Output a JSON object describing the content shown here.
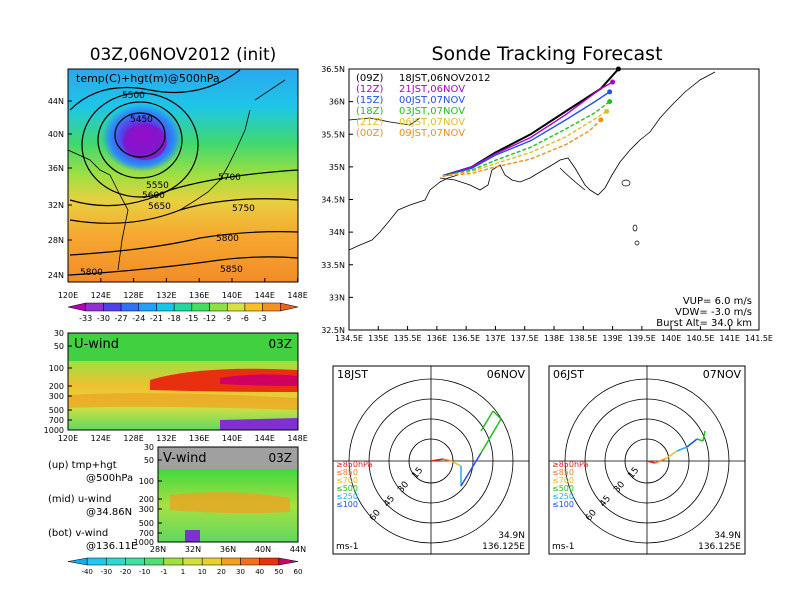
{
  "titles": {
    "left": "03Z,06NOV2012 (init)",
    "right": "Sonde Tracking Forecast"
  },
  "map500": {
    "label": "temp(C)+hgt(m)@500hPa",
    "lat_ticks": [
      "44N",
      "40N",
      "36N",
      "32N",
      "28N",
      "24N"
    ],
    "lon_ticks": [
      "120E",
      "124E",
      "128E",
      "132E",
      "136E",
      "140E",
      "144E",
      "148E"
    ],
    "contour_labels": [
      "5500",
      "5450",
      "5550",
      "5600",
      "5650",
      "5700",
      "5750",
      "5800",
      "5850",
      "5800"
    ],
    "colorbar_labels": [
      "-33",
      "-30",
      "-27",
      "-24",
      "-21",
      "-18",
      "-15",
      "-12",
      "-9",
      "-6",
      "-3"
    ],
    "colorbar_colors": [
      "#b000b0",
      "#9030d0",
      "#5040f0",
      "#3070ff",
      "#20a0ff",
      "#10c8e8",
      "#20d8a0",
      "#40e060",
      "#90e040",
      "#d8e040",
      "#f8c020",
      "#f89020",
      "#f06020"
    ]
  },
  "uwind": {
    "label": "U-wind",
    "time": "03Z",
    "p_ticks": [
      "30",
      "50",
      "100",
      "200",
      "300",
      "500",
      "700",
      "1000"
    ],
    "lon_ticks": [
      "120E",
      "124E",
      "128E",
      "132E",
      "136E",
      "140E",
      "144E",
      "148E"
    ]
  },
  "vwind": {
    "label": "V-wind",
    "time": "03Z",
    "p_ticks": [
      "30",
      "50",
      "100",
      "200",
      "300",
      "500",
      "700",
      "1000"
    ],
    "lat_ticks": [
      "28N",
      "32N",
      "36N",
      "40N",
      "44N"
    ]
  },
  "legend_text": {
    "up1": "(up) tmp+hgt",
    "up2": "@500hPa",
    "mid1": "(mid) u-wind",
    "mid2": "@34.86N",
    "bot1": "(bot) v-wind",
    "bot2": "@136.11E"
  },
  "wind_colorbar": {
    "labels": [
      "-40",
      "-30",
      "-20",
      "-10",
      "-1",
      "1",
      "10",
      "20",
      "30",
      "40",
      "50",
      "60"
    ],
    "colors": [
      "#10b0f0",
      "#20c8f0",
      "#30d8d0",
      "#40e0a0",
      "#50e070",
      "#a0e040",
      "#d0e040",
      "#e8d030",
      "#f0a020",
      "#f07020",
      "#e83010",
      "#d00060"
    ]
  },
  "track_map": {
    "lat_ticks": [
      "36.5N",
      "36N",
      "35.5N",
      "35N",
      "34.5N",
      "34N",
      "33.5N",
      "33N",
      "32.5N"
    ],
    "lon_ticks": [
      "134.5E",
      "135E",
      "135.5E",
      "136E",
      "136.5E",
      "137E",
      "137.5E",
      "138E",
      "138.5E",
      "139E",
      "139.5E",
      "140E",
      "140.5E",
      "141E",
      "141.5E"
    ],
    "legend": [
      {
        "tag": "(09Z)",
        "text": "18JST,06NOV2012",
        "color": "#000000"
      },
      {
        "tag": "(12Z)",
        "text": "21JST,06NOV",
        "color": "#b000d0"
      },
      {
        "tag": "(15Z)",
        "text": "00JST,07NOV",
        "color": "#2050f0"
      },
      {
        "tag": "(18Z)",
        "text": "03JST,07NOV",
        "color": "#20c020"
      },
      {
        "tag": "(21Z)",
        "text": "06JST,07NOV",
        "color": "#e0c020"
      },
      {
        "tag": "(00Z)",
        "text": "09JST,07NOV",
        "color": "#f09020"
      }
    ],
    "params": {
      "vup": "VUP=  6.0  m/s",
      "vdw": "VDW= -3.0  m/s",
      "burst": "Burst Alt= 34.0  km"
    }
  },
  "chart_data": [
    {
      "type": "line",
      "title": "Sonde Tracking Forecast",
      "xlim": [
        134.5,
        141.5
      ],
      "ylim": [
        32.5,
        36.5
      ],
      "series": [
        {
          "name": "(09Z) 18JST,06NOV2012",
          "points": [
            [
              136.1,
              34.86
            ],
            [
              136.6,
              35.0
            ],
            [
              137.0,
              35.22
            ],
            [
              137.6,
              35.5
            ],
            [
              138.2,
              35.85
            ],
            [
              138.8,
              36.2
            ],
            [
              139.1,
              36.5
            ]
          ]
        },
        {
          "name": "(12Z) 21JST,06NOV",
          "points": [
            [
              136.1,
              34.86
            ],
            [
              136.6,
              35.0
            ],
            [
              137.0,
              35.2
            ],
            [
              137.6,
              35.45
            ],
            [
              138.2,
              35.8
            ],
            [
              138.8,
              36.2
            ],
            [
              139.0,
              36.3
            ]
          ]
        },
        {
          "name": "(15Z) 00JST,07NOV",
          "points": [
            [
              136.1,
              34.86
            ],
            [
              136.6,
              34.98
            ],
            [
              137.0,
              35.18
            ],
            [
              137.6,
              35.4
            ],
            [
              138.2,
              35.72
            ],
            [
              138.7,
              36.0
            ],
            [
              138.95,
              36.15
            ]
          ]
        },
        {
          "name": "(18Z) 03JST,07NOV",
          "points": [
            [
              136.1,
              34.86
            ],
            [
              136.6,
              34.95
            ],
            [
              137.0,
              35.1
            ],
            [
              137.6,
              35.3
            ],
            [
              138.2,
              35.58
            ],
            [
              138.7,
              35.83
            ],
            [
              138.95,
              36.0
            ]
          ]
        },
        {
          "name": "(21Z) 06JST,07NOV",
          "points": [
            [
              136.1,
              34.86
            ],
            [
              136.6,
              34.93
            ],
            [
              137.0,
              35.05
            ],
            [
              137.6,
              35.22
            ],
            [
              138.2,
              35.46
            ],
            [
              138.6,
              35.68
            ],
            [
              138.9,
              35.85
            ]
          ]
        },
        {
          "name": "(00Z) 09JST,07NOV",
          "points": [
            [
              136.1,
              34.86
            ],
            [
              136.6,
              34.9
            ],
            [
              137.0,
              35.0
            ],
            [
              137.6,
              35.12
            ],
            [
              138.2,
              35.34
            ],
            [
              138.6,
              35.55
            ],
            [
              138.8,
              35.72
            ]
          ]
        }
      ]
    }
  ],
  "hodo1": {
    "time": "18JST",
    "date": "06NOV",
    "rings": [
      "15",
      "30",
      "45",
      "60"
    ],
    "levels": [
      "≥850hPa",
      "≤850",
      "≤700",
      "≤500",
      "≤250",
      "≤100"
    ],
    "level_colors": [
      "#e02020",
      "#f08020",
      "#e0c020",
      "#20c020",
      "#20b0f0",
      "#2050f0"
    ],
    "loc1": "34.9N",
    "loc2": "136.125E",
    "units": "ms-1"
  },
  "hodo2": {
    "time": "06JST",
    "date": "07NOV",
    "rings": [
      "15",
      "30",
      "45",
      "60"
    ],
    "levels": [
      "≥850hPa",
      "≤850",
      "≤700",
      "≤500",
      "≤250",
      "≤100"
    ],
    "level_colors": [
      "#e02020",
      "#f08020",
      "#e0c020",
      "#20c020",
      "#20b0f0",
      "#2050f0"
    ],
    "loc1": "34.9N",
    "loc2": "136.125E",
    "units": "ms-1"
  }
}
